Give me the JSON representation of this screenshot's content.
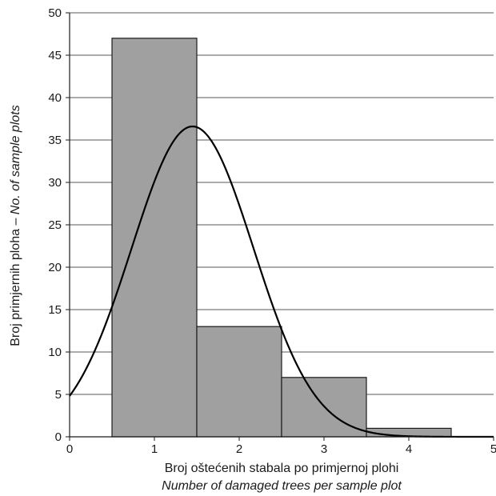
{
  "chart_data": {
    "type": "bar",
    "x_domain": [
      0,
      5
    ],
    "ylim": [
      0,
      50
    ],
    "x_ticks": [
      "0",
      "1",
      "2",
      "3",
      "4",
      "5"
    ],
    "y_ticks": [
      "0",
      "5",
      "10",
      "15",
      "20",
      "25",
      "30",
      "35",
      "40",
      "45",
      "50"
    ],
    "bars": [
      {
        "x_from": 0.5,
        "x_to": 1.5,
        "value": 47
      },
      {
        "x_from": 1.5,
        "x_to": 2.5,
        "value": 13
      },
      {
        "x_from": 2.5,
        "x_to": 3.5,
        "value": 7
      },
      {
        "x_from": 3.5,
        "x_to": 4.5,
        "value": 1
      }
    ],
    "normal_curve": {
      "mean": 1.45,
      "sd": 0.72,
      "peak": 36.6
    },
    "grid": {
      "horizontal": true,
      "vertical": false
    },
    "bar_color": "#a0a0a0",
    "xlabel": "Broj oštećenih stabala po primjernoj plohi",
    "xlabel_en": "Number of damaged trees per sample plot",
    "ylabel_plain": "Broj primjernih ploha – ",
    "ylabel_italic": "No. of sample plots"
  }
}
